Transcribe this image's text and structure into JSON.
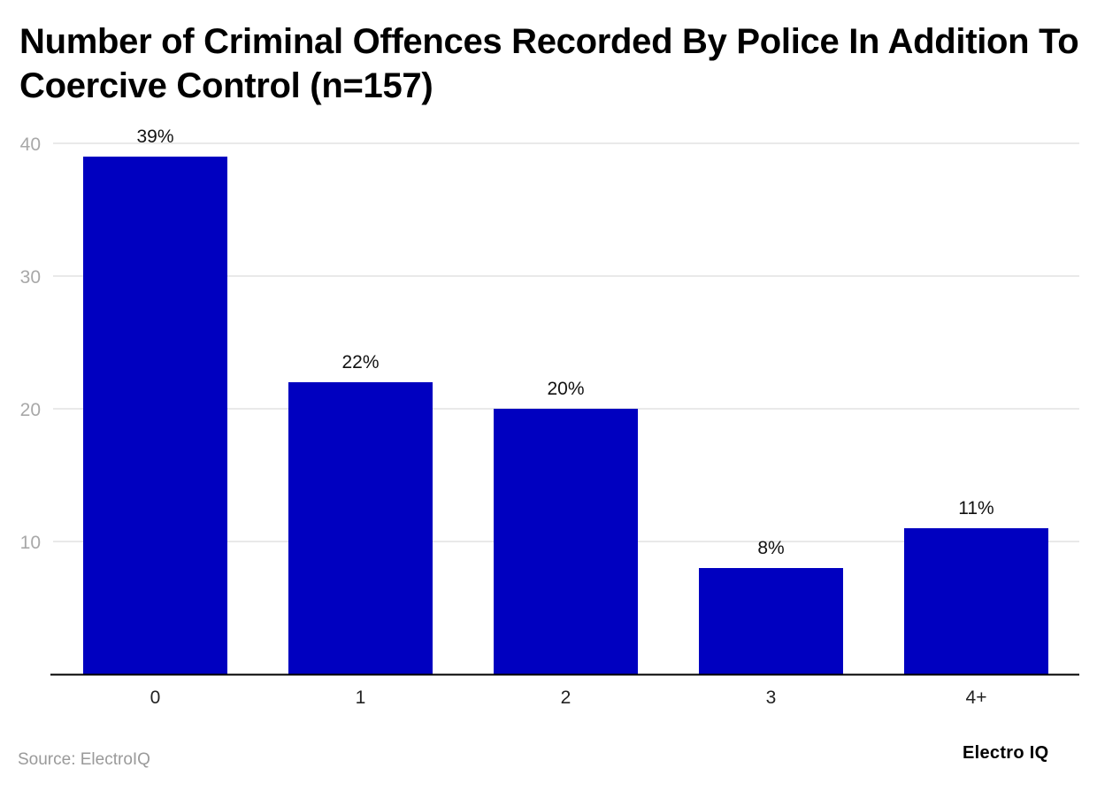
{
  "title": "Number of Criminal Offences Recorded By Police In Addition To Coercive Control (n=157)",
  "source": "Source: ElectroIQ",
  "brand": "Electro IQ",
  "colors": {
    "bar": "#0000c0",
    "grid": "#e2e2e2",
    "axis": "#000000"
  },
  "chart_data": {
    "type": "bar",
    "categories": [
      "0",
      "1",
      "2",
      "3",
      "4+"
    ],
    "values": [
      39,
      22,
      20,
      8,
      11
    ],
    "data_labels": [
      "39%",
      "22%",
      "20%",
      "8%",
      "11%"
    ],
    "yticks": [
      10,
      20,
      30,
      40
    ],
    "ylim": [
      0,
      40
    ],
    "grid": true,
    "xlabel": "",
    "ylabel": ""
  }
}
